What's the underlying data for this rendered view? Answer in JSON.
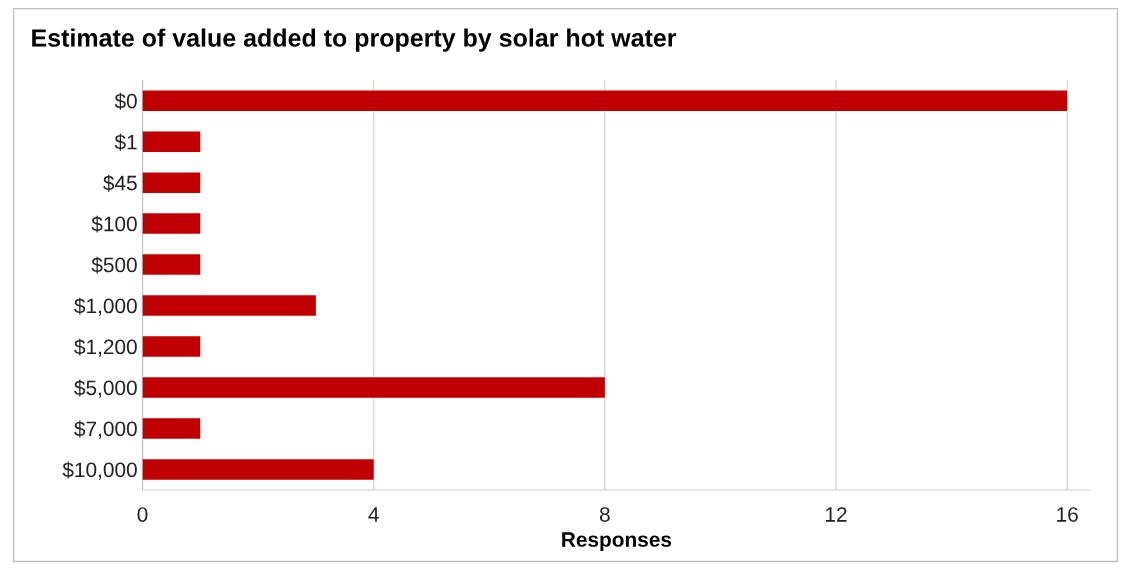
{
  "chart_data": {
    "type": "bar",
    "orientation": "horizontal",
    "title": "Estimate of value added to property by solar hot water",
    "xlabel": "Responses",
    "categories": [
      "$0",
      "$1",
      "$45",
      "$100",
      "$500",
      "$1,000",
      "$1,200",
      "$5,000",
      "$7,000",
      "$10,000"
    ],
    "values": [
      16,
      1,
      1,
      1,
      1,
      3,
      1,
      8,
      1,
      4
    ],
    "color": "#c00000",
    "xlim": [
      0,
      16.4
    ],
    "xticks": [
      0,
      4,
      8,
      12,
      16
    ],
    "grid": "x"
  }
}
